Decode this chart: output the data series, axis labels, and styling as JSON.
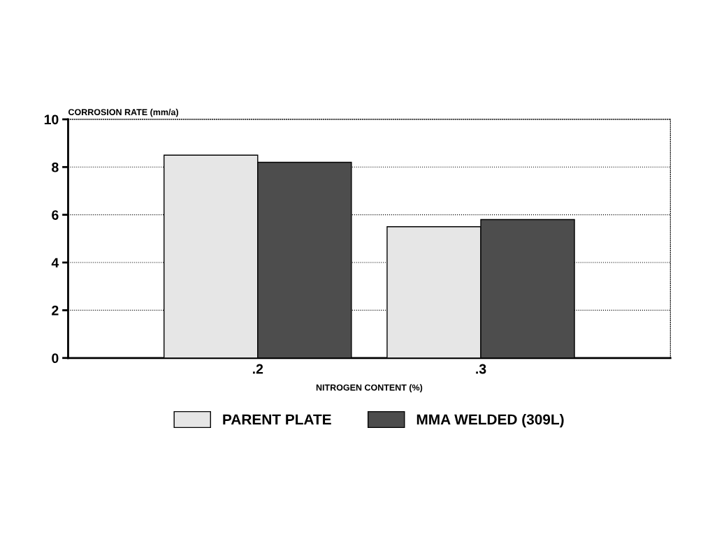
{
  "chart_data": {
    "type": "bar",
    "ylabel": "CORROSION RATE (mm/a)",
    "xlabel": "NITROGEN CONTENT (%)",
    "categories": [
      ".2",
      ".3"
    ],
    "series": [
      {
        "name": "PARENT PLATE",
        "color": "#e6e6e6",
        "values": [
          8.5,
          5.5
        ]
      },
      {
        "name": "MMA WELDED (309L)",
        "color": "#4d4d4d",
        "values": [
          8.2,
          5.8
        ]
      }
    ],
    "ylim": [
      0,
      10
    ],
    "yticks": [
      0,
      2,
      4,
      6,
      8,
      10
    ],
    "grid": "y",
    "legend": "bottom"
  }
}
